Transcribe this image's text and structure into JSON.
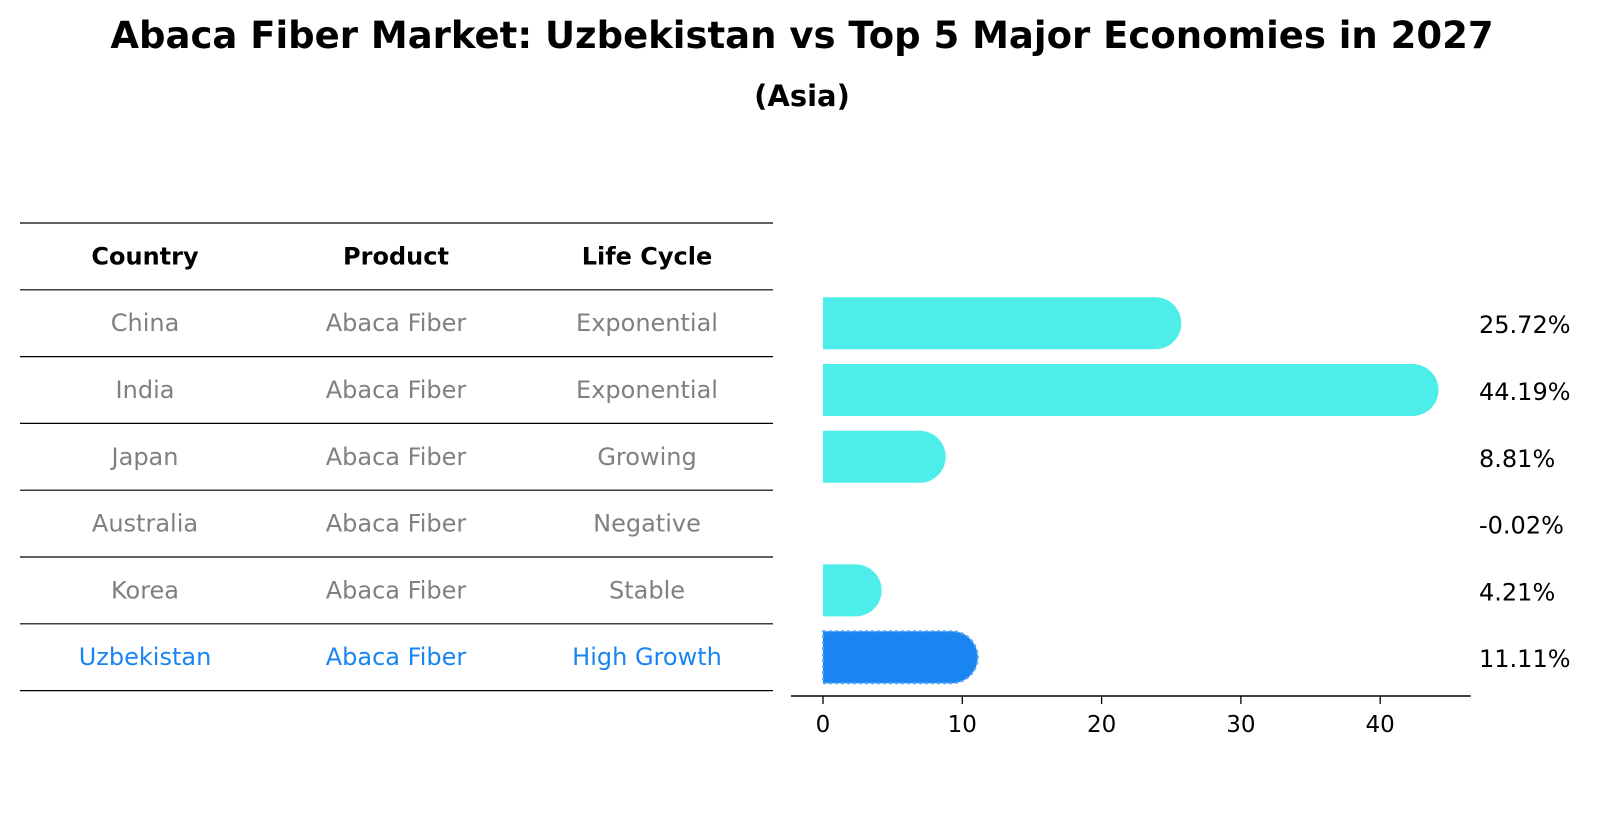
{
  "chart_data": {
    "type": "bar",
    "orientation": "horizontal",
    "title": "Abaca Fiber Market: Uzbekistan vs Top 5 Major Economies in 2027",
    "subtitle": "(Asia)",
    "table": {
      "columns": [
        "Country",
        "Product",
        "Life Cycle"
      ],
      "rows": [
        {
          "country": "China",
          "product": "Abaca Fiber",
          "life_cycle": "Exponential",
          "highlight": false
        },
        {
          "country": "India",
          "product": "Abaca Fiber",
          "life_cycle": "Exponential",
          "highlight": false
        },
        {
          "country": "Japan",
          "product": "Abaca Fiber",
          "life_cycle": "Growing",
          "highlight": false
        },
        {
          "country": "Australia",
          "product": "Abaca Fiber",
          "life_cycle": "Negative",
          "highlight": false
        },
        {
          "country": "Korea",
          "product": "Abaca Fiber",
          "life_cycle": "Stable",
          "highlight": false
        },
        {
          "country": "Uzbekistan",
          "product": "Abaca Fiber",
          "life_cycle": "High Growth",
          "highlight": true
        }
      ]
    },
    "categories": [
      "China",
      "India",
      "Japan",
      "Australia",
      "Korea",
      "Uzbekistan"
    ],
    "values": [
      25.72,
      44.19,
      8.81,
      -0.02,
      4.21,
      11.11
    ],
    "value_labels": [
      "25.72%",
      "44.19%",
      "8.81%",
      "-0.02%",
      "4.21%",
      "11.11%"
    ],
    "xlim": [
      -2.3,
      46.5
    ],
    "xticks": [
      0,
      10,
      20,
      30,
      40
    ],
    "grid": false,
    "colors": {
      "bar": "#4DEEEA",
      "highlight_bar": "#1A85F0",
      "highlight_text": "#1A85F0",
      "muted_text": "#808080",
      "text": "#000000"
    }
  }
}
